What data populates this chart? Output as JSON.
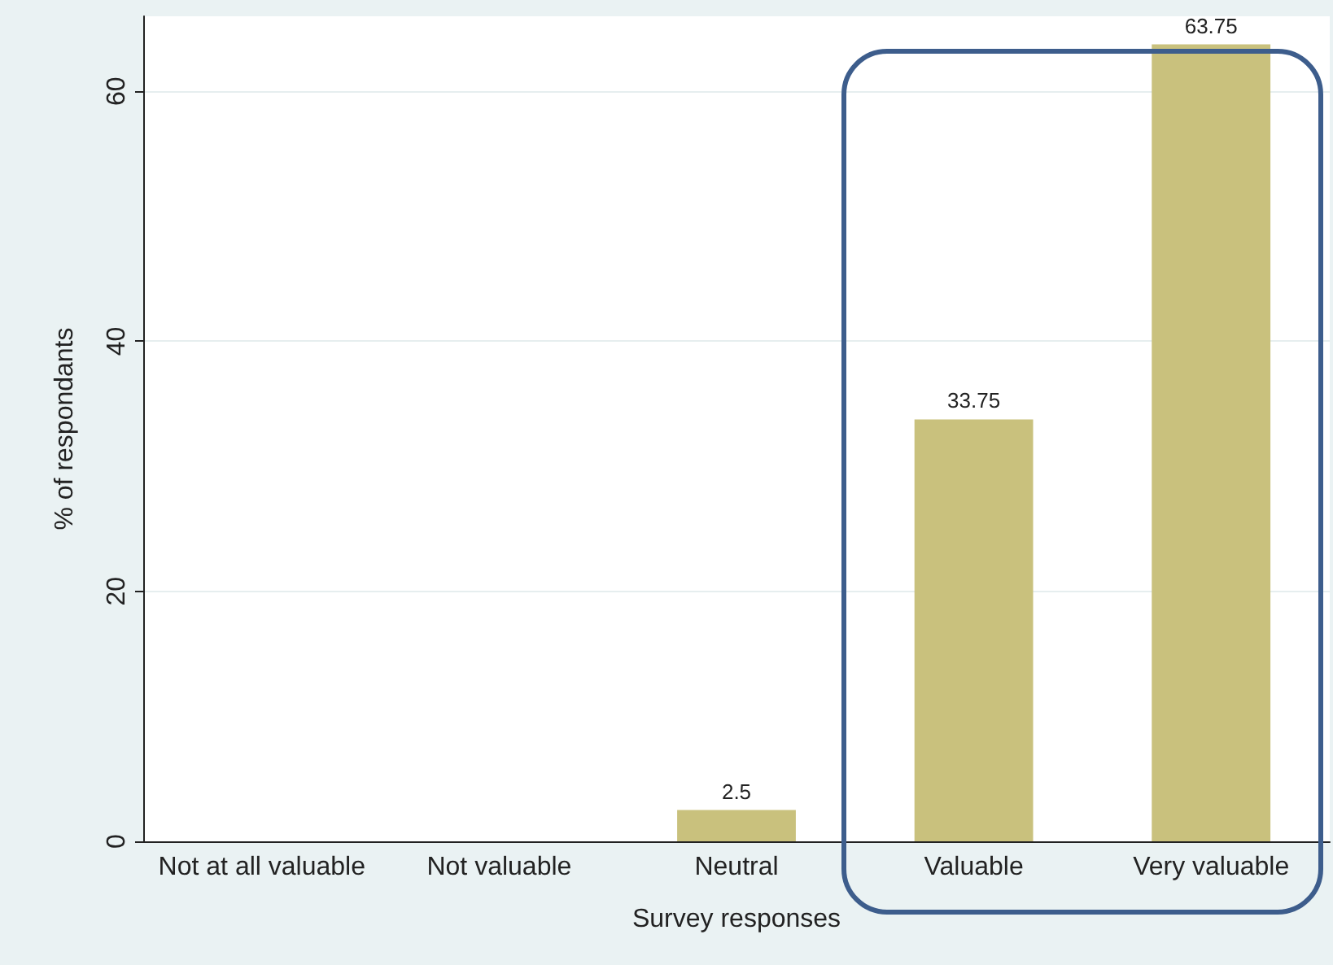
{
  "chart_data": {
    "type": "bar",
    "xlabel": "Survey responses",
    "ylabel": "% of respondants",
    "categories": [
      "Not at all valuable",
      "Not valuable",
      "Neutral",
      "Valuable",
      "Very valuable"
    ],
    "values": [
      0,
      0,
      2.5,
      33.75,
      63.75
    ],
    "value_labels": [
      null,
      null,
      "2.5",
      "33.75",
      "63.75"
    ],
    "color": "#c9c17d",
    "ylim": [
      0,
      66
    ],
    "yticks": [
      0,
      20,
      40,
      60
    ],
    "grid": "y"
  }
}
